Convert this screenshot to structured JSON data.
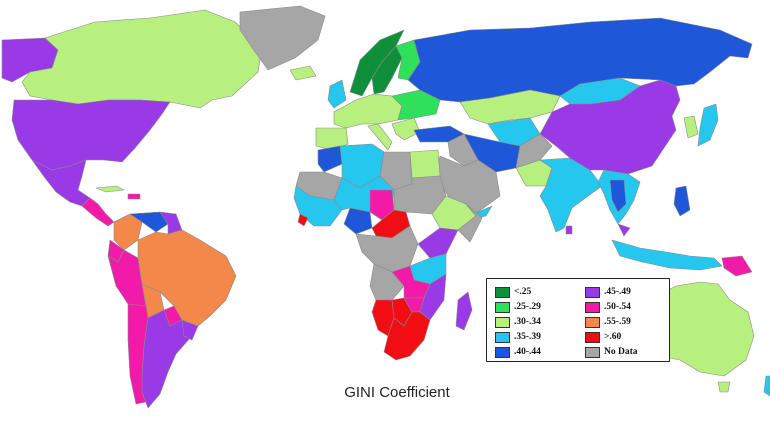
{
  "title": "GINI Coefficient",
  "colors": {
    "lt25": "#0f8f3a",
    "c25_29": "#2fe05a",
    "c30_34": "#b7f07f",
    "c35_39": "#26c7ef",
    "c40_44": "#1f57d9",
    "c45_49": "#9a3ae6",
    "c50_54": "#f21aa8",
    "c55_59": "#f2894b",
    "gt60": "#f20c14",
    "nodata": "#a6a6a6"
  },
  "legend": [
    {
      "label": "<.25",
      "color": "#0f8f3a"
    },
    {
      "label": ".45-.49",
      "color": "#9a3ae6"
    },
    {
      "label": ".25-.29",
      "color": "#2fe05a"
    },
    {
      "label": ".50-.54",
      "color": "#f21aa8"
    },
    {
      "label": ".30-.34",
      "color": "#b7f07f"
    },
    {
      "label": ".55-.59",
      "color": "#f2894b"
    },
    {
      "label": ".35-.39",
      "color": "#26c7ef"
    },
    {
      "label": ">.60",
      "color": "#f20c14"
    },
    {
      "label": ".40-.44",
      "color": "#1f57d9"
    },
    {
      "label": "No Data",
      "color": "#a6a6a6"
    }
  ]
}
